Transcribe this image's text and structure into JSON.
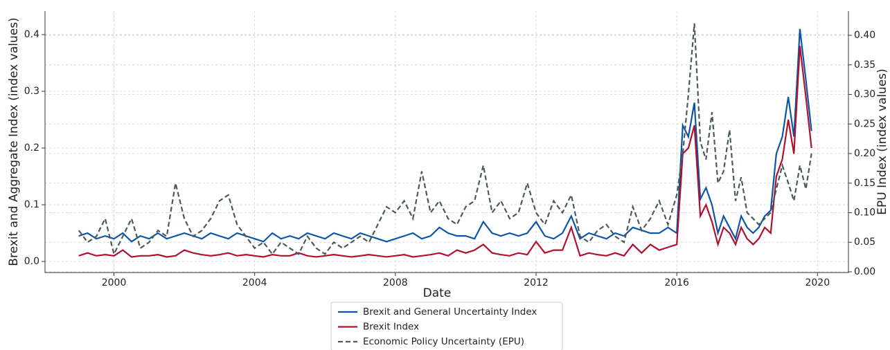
{
  "chart_data": {
    "type": "line",
    "xlabel": "Date",
    "ylabel": "Brexit and Aggregate Index (index values)",
    "y2label": "EPU Index (index values)",
    "x": [
      1999.0,
      1999.25,
      1999.5,
      1999.75,
      2000.0,
      2000.25,
      2000.5,
      2000.75,
      2001.0,
      2001.25,
      2001.5,
      2001.75,
      2002.0,
      2002.25,
      2002.5,
      2002.75,
      2003.0,
      2003.25,
      2003.5,
      2003.75,
      2004.0,
      2004.25,
      2004.5,
      2004.75,
      2005.0,
      2005.25,
      2005.5,
      2005.75,
      2006.0,
      2006.25,
      2006.5,
      2006.75,
      2007.0,
      2007.25,
      2007.5,
      2007.75,
      2008.0,
      2008.25,
      2008.5,
      2008.75,
      2009.0,
      2009.25,
      2009.5,
      2009.75,
      2010.0,
      2010.25,
      2010.5,
      2010.75,
      2011.0,
      2011.25,
      2011.5,
      2011.75,
      2012.0,
      2012.25,
      2012.5,
      2012.75,
      2013.0,
      2013.25,
      2013.5,
      2013.75,
      2014.0,
      2014.25,
      2014.5,
      2014.75,
      2015.0,
      2015.25,
      2015.5,
      2015.75,
      2016.0,
      2016.17,
      2016.33,
      2016.5,
      2016.67,
      2016.83,
      2017.0,
      2017.17,
      2017.33,
      2017.5,
      2017.67,
      2017.83,
      2018.0,
      2018.17,
      2018.33,
      2018.5,
      2018.67,
      2018.83,
      2019.0,
      2019.17,
      2019.33,
      2019.5,
      2019.67,
      2019.83
    ],
    "series": [
      {
        "name": "Brexit and General Uncertainty Index",
        "color": "#0c55a6",
        "axis": "y",
        "linestyle": "solid",
        "values": [
          0.045,
          0.05,
          0.04,
          0.045,
          0.04,
          0.05,
          0.035,
          0.045,
          0.04,
          0.05,
          0.04,
          0.045,
          0.05,
          0.045,
          0.04,
          0.05,
          0.045,
          0.04,
          0.05,
          0.045,
          0.04,
          0.035,
          0.05,
          0.04,
          0.045,
          0.04,
          0.05,
          0.045,
          0.04,
          0.05,
          0.045,
          0.04,
          0.05,
          0.045,
          0.04,
          0.035,
          0.04,
          0.045,
          0.05,
          0.04,
          0.045,
          0.06,
          0.05,
          0.045,
          0.045,
          0.04,
          0.07,
          0.05,
          0.045,
          0.05,
          0.045,
          0.05,
          0.07,
          0.045,
          0.04,
          0.05,
          0.08,
          0.04,
          0.05,
          0.045,
          0.04,
          0.05,
          0.045,
          0.06,
          0.055,
          0.05,
          0.05,
          0.06,
          0.05,
          0.24,
          0.22,
          0.28,
          0.11,
          0.13,
          0.1,
          0.05,
          0.08,
          0.06,
          0.04,
          0.08,
          0.06,
          0.05,
          0.06,
          0.08,
          0.09,
          0.19,
          0.22,
          0.29,
          0.22,
          0.41,
          0.32,
          0.23
        ]
      },
      {
        "name": "Brexit Index",
        "color": "#b0102e",
        "axis": "y",
        "linestyle": "solid",
        "values": [
          0.01,
          0.015,
          0.01,
          0.012,
          0.01,
          0.02,
          0.008,
          0.01,
          0.01,
          0.012,
          0.008,
          0.01,
          0.02,
          0.015,
          0.012,
          0.01,
          0.012,
          0.015,
          0.01,
          0.012,
          0.01,
          0.008,
          0.012,
          0.01,
          0.01,
          0.015,
          0.01,
          0.008,
          0.01,
          0.012,
          0.01,
          0.008,
          0.01,
          0.012,
          0.01,
          0.008,
          0.01,
          0.012,
          0.008,
          0.01,
          0.012,
          0.015,
          0.01,
          0.02,
          0.015,
          0.02,
          0.03,
          0.015,
          0.012,
          0.01,
          0.015,
          0.012,
          0.035,
          0.015,
          0.02,
          0.02,
          0.06,
          0.01,
          0.015,
          0.012,
          0.01,
          0.015,
          0.01,
          0.03,
          0.015,
          0.03,
          0.02,
          0.025,
          0.03,
          0.19,
          0.2,
          0.24,
          0.08,
          0.1,
          0.07,
          0.03,
          0.06,
          0.05,
          0.03,
          0.06,
          0.04,
          0.03,
          0.04,
          0.06,
          0.05,
          0.15,
          0.18,
          0.25,
          0.19,
          0.38,
          0.29,
          0.2
        ]
      },
      {
        "name": "Economic Policy Uncertainty (EPU)",
        "color": "#4a5a5a",
        "axis": "y2",
        "linestyle": "dashed",
        "values": [
          0.07,
          0.05,
          0.06,
          0.09,
          0.03,
          0.06,
          0.09,
          0.04,
          0.05,
          0.07,
          0.06,
          0.15,
          0.09,
          0.06,
          0.07,
          0.09,
          0.12,
          0.13,
          0.08,
          0.06,
          0.04,
          0.05,
          0.03,
          0.05,
          0.04,
          0.03,
          0.06,
          0.04,
          0.03,
          0.05,
          0.04,
          0.05,
          0.06,
          0.05,
          0.08,
          0.11,
          0.1,
          0.12,
          0.09,
          0.17,
          0.1,
          0.12,
          0.09,
          0.08,
          0.11,
          0.12,
          0.18,
          0.1,
          0.12,
          0.09,
          0.1,
          0.15,
          0.1,
          0.08,
          0.12,
          0.1,
          0.13,
          0.06,
          0.05,
          0.07,
          0.08,
          0.06,
          0.05,
          0.11,
          0.07,
          0.09,
          0.12,
          0.08,
          0.13,
          0.2,
          0.3,
          0.42,
          0.22,
          0.19,
          0.27,
          0.15,
          0.17,
          0.24,
          0.12,
          0.16,
          0.1,
          0.09,
          0.08,
          0.09,
          0.1,
          0.14,
          0.18,
          0.15,
          0.12,
          0.18,
          0.14,
          0.2
        ]
      }
    ],
    "xlim": [
      1998.04,
      2020.88
    ],
    "xticks": [
      2000,
      2004,
      2008,
      2012,
      2016,
      2020
    ],
    "ylim": [
      -0.0195,
      0.4415
    ],
    "yticks": [
      {
        "value": 0,
        "label": "0.0"
      },
      0.1,
      0.2,
      0.3,
      0.4
    ],
    "y2lim": [
      -0.0012,
      0.441
    ],
    "y2ticks": [
      {
        "value": 0,
        "label": "0.00"
      },
      {
        "value": 0.05,
        "label": "0.05"
      },
      {
        "value": 0.1,
        "label": "0.10"
      },
      {
        "value": 0.15,
        "label": "0.15"
      },
      {
        "value": 0.2,
        "label": "0.20"
      },
      {
        "value": 0.25,
        "label": "0.25"
      },
      {
        "value": 0.3,
        "label": "0.30"
      },
      {
        "value": 0.35,
        "label": "0.35"
      },
      {
        "value": 0.4,
        "label": "0.40"
      }
    ],
    "grid": true,
    "legend": "bottom"
  }
}
